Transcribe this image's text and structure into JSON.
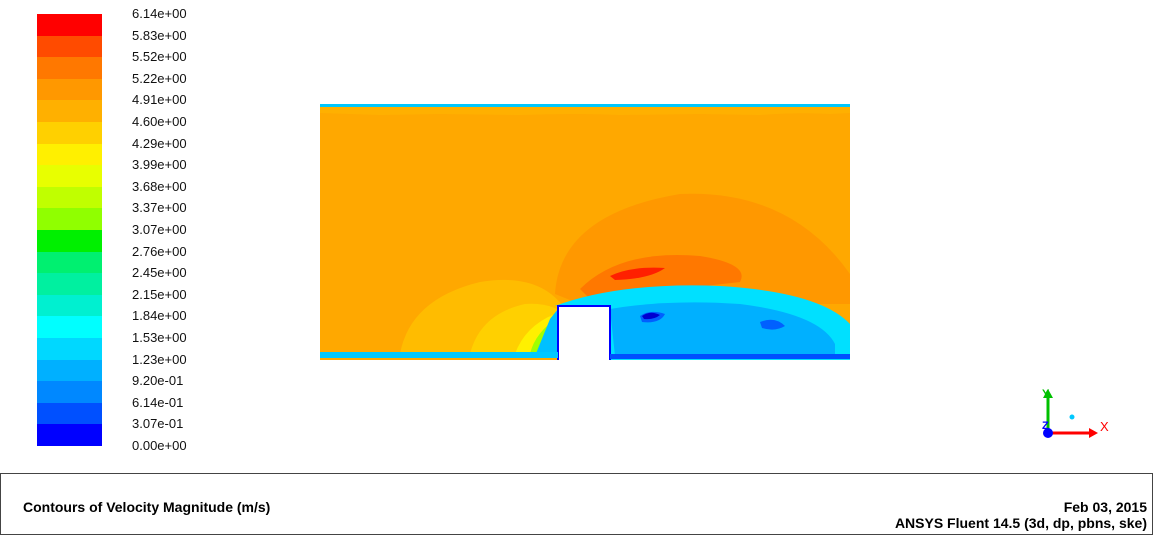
{
  "colorbar": {
    "labels": [
      "6.14e+00",
      "5.83e+00",
      "5.52e+00",
      "5.22e+00",
      "4.91e+00",
      "4.60e+00",
      "4.29e+00",
      "3.99e+00",
      "3.68e+00",
      "3.37e+00",
      "3.07e+00",
      "2.76e+00",
      "2.45e+00",
      "2.15e+00",
      "1.84e+00",
      "1.53e+00",
      "1.23e+00",
      "9.20e-01",
      "6.14e-01",
      "3.07e-01",
      "0.00e+00"
    ],
    "colors": [
      "#ff0000",
      "#ff4b00",
      "#ff7800",
      "#ff9800",
      "#ffb000",
      "#ffd000",
      "#fff000",
      "#e8ff00",
      "#c0ff00",
      "#90ff00",
      "#00f000",
      "#00f070",
      "#00f0a0",
      "#00f0d0",
      "#00ffff",
      "#00d8ff",
      "#00b0ff",
      "#0088ff",
      "#0050ff",
      "#0000ff"
    ]
  },
  "axes": {
    "x_label": "X",
    "y_label": "Y",
    "z_label": "Z"
  },
  "footer": {
    "title": "Contours of Velocity Magnitude (m/s)",
    "date": "Feb 03, 2015",
    "software": "ANSYS Fluent 14.5 (3d, dp, pbns, ske)"
  }
}
